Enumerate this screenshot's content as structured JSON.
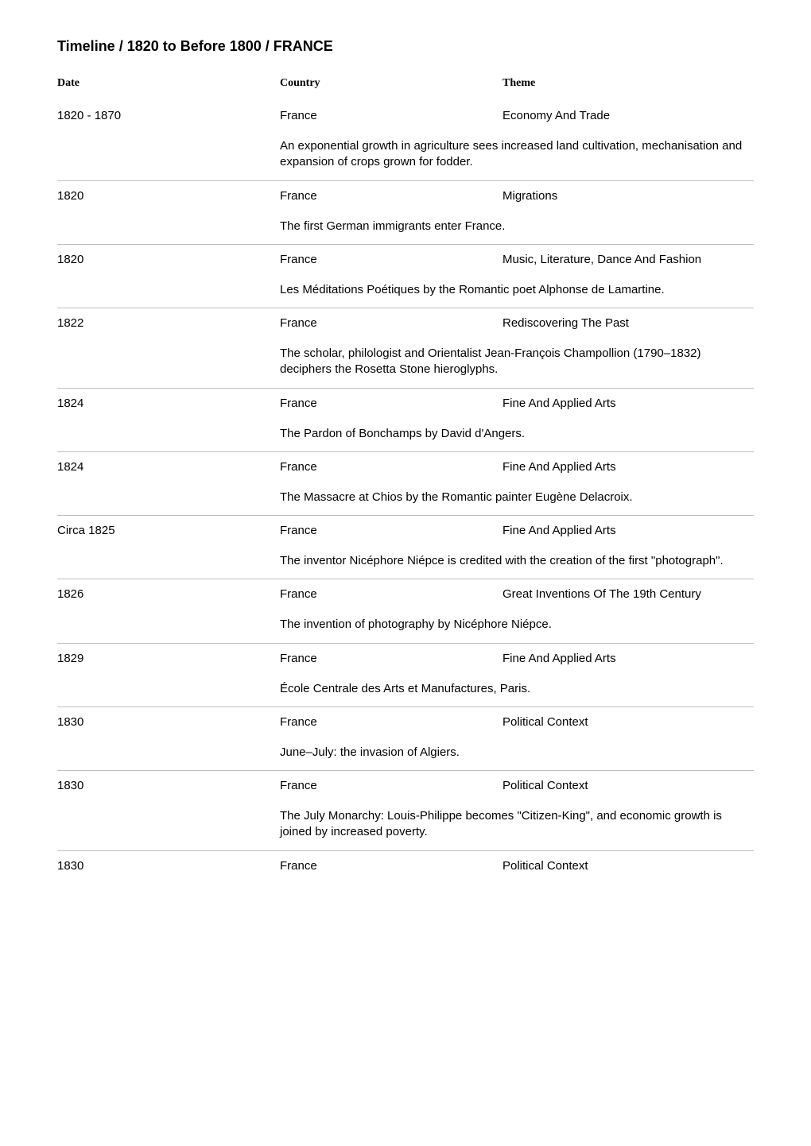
{
  "title": "Timeline / 1820 to Before 1800 / FRANCE",
  "columns": {
    "date": "Date",
    "country": "Country",
    "theme": "Theme"
  },
  "entries": [
    {
      "date": "1820 - 1870",
      "country": "France",
      "theme": "Economy And Trade",
      "desc": "An exponential growth in agriculture sees increased land cultivation, mechanisation and expansion of crops grown for fodder."
    },
    {
      "date": "1820",
      "country": "France",
      "theme": "Migrations",
      "desc": "The first German immigrants enter France."
    },
    {
      "date": "1820",
      "country": "France",
      "theme": "Music, Literature, Dance And Fashion",
      "desc": "Les Méditations Poétiques by the Romantic poet Alphonse de Lamartine."
    },
    {
      "date": "1822",
      "country": "France",
      "theme": "Rediscovering The Past",
      "desc": "The scholar, philologist and Orientalist Jean-François Champollion (1790–1832) deciphers the Rosetta Stone hieroglyphs."
    },
    {
      "date": "1824",
      "country": "France",
      "theme": "Fine And Applied Arts",
      "desc": "The Pardon of Bonchamps by David d'Angers."
    },
    {
      "date": "1824",
      "country": "France",
      "theme": "Fine And Applied Arts",
      "desc": "The Massacre at Chios by the Romantic painter Eugène Delacroix."
    },
    {
      "date": "Circa 1825",
      "country": "France",
      "theme": "Fine And Applied Arts",
      "desc": "The inventor Nicéphore Niépce is credited with the creation of the first \"photograph\"."
    },
    {
      "date": "1826",
      "country": "France",
      "theme": "Great Inventions Of The 19th Century",
      "desc": "The invention of photography by Nicéphore Niépce."
    },
    {
      "date": "1829",
      "country": "France",
      "theme": "Fine And Applied Arts",
      "desc": "École Centrale des Arts et Manufactures, Paris."
    },
    {
      "date": "1830",
      "country": "France",
      "theme": "Political Context",
      "desc": "June–July: the invasion of Algiers."
    },
    {
      "date": "1830",
      "country": "France",
      "theme": "Political Context",
      "desc": "The July Monarchy: Louis-Philippe becomes \"Citizen-King\", and economic growth is joined by increased poverty."
    },
    {
      "date": "1830",
      "country": "France",
      "theme": "Political Context",
      "desc": ""
    }
  ]
}
